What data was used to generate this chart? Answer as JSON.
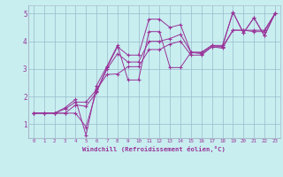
{
  "xlabel": "Windchill (Refroidissement éolien,°C)",
  "bg_color": "#c8eef0",
  "line_color": "#993399",
  "grid_color": "#99bbcc",
  "xlim": [
    -0.5,
    23.5
  ],
  "ylim": [
    0.5,
    5.3
  ],
  "yticks": [
    1,
    2,
    3,
    4,
    5
  ],
  "xticks": [
    0,
    1,
    2,
    3,
    4,
    5,
    6,
    7,
    8,
    9,
    10,
    11,
    12,
    13,
    14,
    15,
    16,
    17,
    18,
    19,
    20,
    21,
    22,
    23
  ],
  "series": [
    {
      "x": [
        0,
        1,
        2,
        3,
        4,
        5,
        6,
        7,
        8,
        9,
        10,
        11,
        12,
        13,
        14,
        15,
        16,
        17,
        18,
        19,
        20,
        21,
        22,
        23
      ],
      "y": [
        1.4,
        1.4,
        1.4,
        1.4,
        1.4,
        0.9,
        2.2,
        3.05,
        3.8,
        3.5,
        3.5,
        4.8,
        4.8,
        4.5,
        4.6,
        3.6,
        3.6,
        3.85,
        3.8,
        5.05,
        4.3,
        4.85,
        4.2,
        5.0
      ]
    },
    {
      "x": [
        0,
        1,
        2,
        3,
        4,
        5,
        6,
        7,
        8,
        9,
        10,
        11,
        12,
        13,
        14,
        15,
        16,
        17,
        18,
        19,
        20,
        21,
        22,
        23
      ],
      "y": [
        1.4,
        1.4,
        1.4,
        1.4,
        1.7,
        1.65,
        2.15,
        3.0,
        3.55,
        3.25,
        3.25,
        4.0,
        4.0,
        4.1,
        4.25,
        3.6,
        3.55,
        3.8,
        3.75,
        4.4,
        4.4,
        4.35,
        4.35,
        5.0
      ]
    },
    {
      "x": [
        0,
        1,
        2,
        3,
        4,
        5,
        6,
        7,
        8,
        9,
        10,
        11,
        12,
        13,
        14,
        15,
        16,
        17,
        18,
        19,
        20,
        21,
        22,
        23
      ],
      "y": [
        1.4,
        1.4,
        1.4,
        1.55,
        1.8,
        1.8,
        2.25,
        2.8,
        2.82,
        3.08,
        3.08,
        3.7,
        3.7,
        3.9,
        4.0,
        3.5,
        3.5,
        3.8,
        3.8,
        4.4,
        4.4,
        4.4,
        4.4,
        5.0
      ]
    },
    {
      "x": [
        0,
        1,
        2,
        3,
        4,
        5,
        6,
        7,
        8,
        9,
        10,
        11,
        12,
        13,
        14,
        15,
        16,
        17,
        18,
        19,
        20,
        21,
        22,
        23
      ],
      "y": [
        1.4,
        1.4,
        1.4,
        1.6,
        1.9,
        0.6,
        2.4,
        3.1,
        3.85,
        2.6,
        2.6,
        4.35,
        4.35,
        3.05,
        3.05,
        3.6,
        3.6,
        3.85,
        3.85,
        5.05,
        4.3,
        4.85,
        4.2,
        5.0
      ]
    }
  ]
}
